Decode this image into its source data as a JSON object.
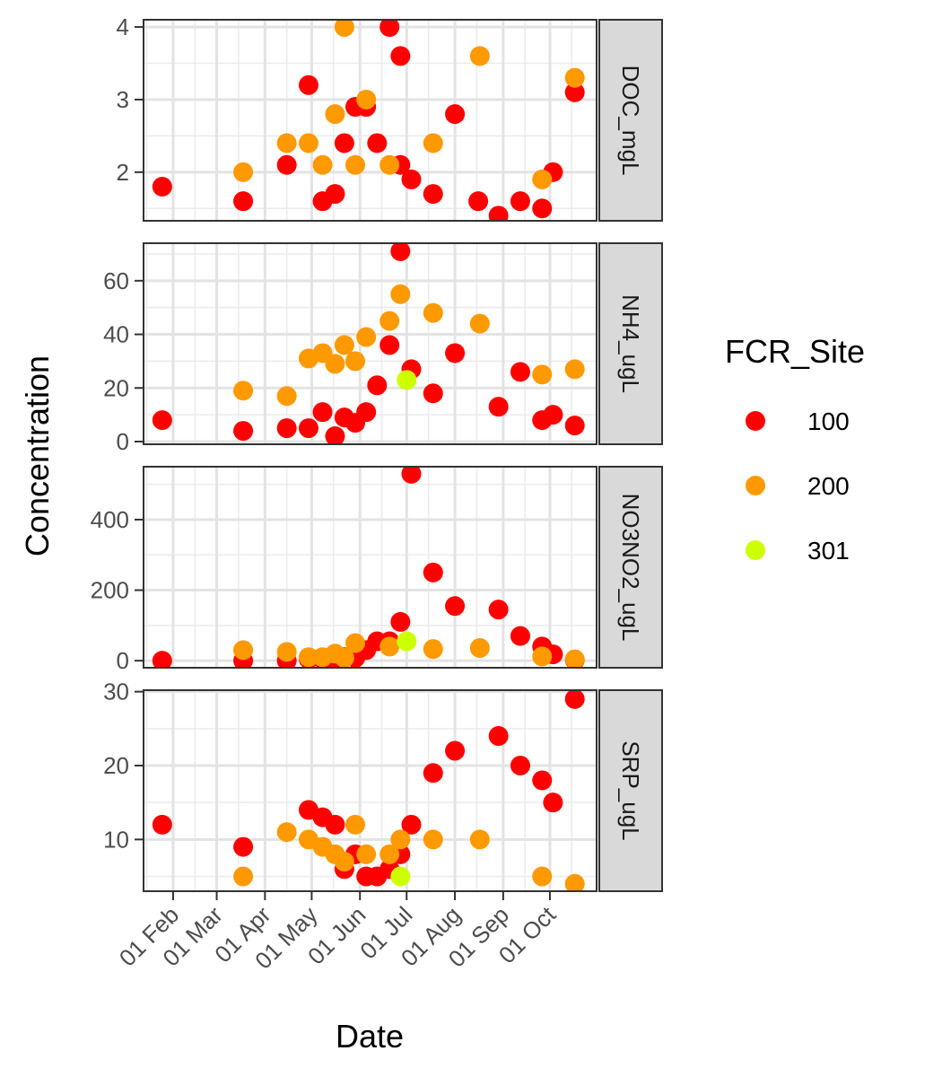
{
  "chart_data": {
    "type": "scatter",
    "xlabel": "Date",
    "ylabel": "Concentration",
    "x_ticks": [
      "01 Feb",
      "01 Mar",
      "01 Apr",
      "01 May",
      "01 Jun",
      "01 Jul",
      "01 Aug",
      "01 Sep",
      "01 Oct"
    ],
    "xlim": [
      "2019-01-13",
      "2019-10-31"
    ],
    "legend": {
      "title": "FCR_Site",
      "position": "right"
    },
    "sites": [
      {
        "name": "100",
        "color": "#ff0000"
      },
      {
        "name": "200",
        "color": "#ff9900"
      },
      {
        "name": "301",
        "color": "#ccff00"
      }
    ],
    "panels": [
      {
        "label": "DOC_mgL",
        "ylim": [
          1.33,
          4.1
        ],
        "y_ticks": [
          2,
          3,
          4
        ],
        "points": [
          {
            "x": "2019-01-25",
            "y": 1.8,
            "site": "100"
          },
          {
            "x": "2019-03-18",
            "y": 1.6,
            "site": "100"
          },
          {
            "x": "2019-04-15",
            "y": 2.1,
            "site": "100"
          },
          {
            "x": "2019-04-29",
            "y": 3.2,
            "site": "100"
          },
          {
            "x": "2019-05-08",
            "y": 1.6,
            "site": "100"
          },
          {
            "x": "2019-05-16",
            "y": 1.7,
            "site": "100"
          },
          {
            "x": "2019-05-22",
            "y": 2.4,
            "site": "100"
          },
          {
            "x": "2019-05-29",
            "y": 2.9,
            "site": "100"
          },
          {
            "x": "2019-06-05",
            "y": 2.9,
            "site": "100"
          },
          {
            "x": "2019-06-12",
            "y": 2.4,
            "site": "100"
          },
          {
            "x": "2019-06-20",
            "y": 4.0,
            "site": "100"
          },
          {
            "x": "2019-06-27",
            "y": 3.6,
            "site": "100"
          },
          {
            "x": "2019-06-27",
            "y": 2.1,
            "site": "100"
          },
          {
            "x": "2019-07-04",
            "y": 1.9,
            "site": "100"
          },
          {
            "x": "2019-07-18",
            "y": 1.7,
            "site": "100"
          },
          {
            "x": "2019-08-01",
            "y": 2.8,
            "site": "100"
          },
          {
            "x": "2019-08-16",
            "y": 1.6,
            "site": "100"
          },
          {
            "x": "2019-08-29",
            "y": 1.4,
            "site": "100"
          },
          {
            "x": "2019-09-12",
            "y": 1.6,
            "site": "100"
          },
          {
            "x": "2019-09-26",
            "y": 1.5,
            "site": "100"
          },
          {
            "x": "2019-10-03",
            "y": 2.0,
            "site": "100"
          },
          {
            "x": "2019-10-17",
            "y": 3.1,
            "site": "100"
          },
          {
            "x": "2019-03-18",
            "y": 2.0,
            "site": "200"
          },
          {
            "x": "2019-04-15",
            "y": 2.4,
            "site": "200"
          },
          {
            "x": "2019-04-29",
            "y": 2.4,
            "site": "200"
          },
          {
            "x": "2019-05-08",
            "y": 2.1,
            "site": "200"
          },
          {
            "x": "2019-05-16",
            "y": 2.8,
            "site": "200"
          },
          {
            "x": "2019-05-22",
            "y": 4.0,
            "site": "200"
          },
          {
            "x": "2019-05-29",
            "y": 2.1,
            "site": "200"
          },
          {
            "x": "2019-06-05",
            "y": 3.0,
            "site": "200"
          },
          {
            "x": "2019-06-20",
            "y": 2.1,
            "site": "200"
          },
          {
            "x": "2019-07-18",
            "y": 2.4,
            "site": "200"
          },
          {
            "x": "2019-08-17",
            "y": 3.6,
            "site": "200"
          },
          {
            "x": "2019-09-26",
            "y": 1.9,
            "site": "200"
          },
          {
            "x": "2019-10-17",
            "y": 3.3,
            "site": "200"
          }
        ]
      },
      {
        "label": "NH4_ugL",
        "ylim": [
          -1,
          74
        ],
        "y_ticks": [
          0,
          20,
          40,
          60
        ],
        "points": [
          {
            "x": "2019-01-25",
            "y": 8,
            "site": "100"
          },
          {
            "x": "2019-03-18",
            "y": 4,
            "site": "100"
          },
          {
            "x": "2019-04-15",
            "y": 5,
            "site": "100"
          },
          {
            "x": "2019-04-29",
            "y": 5,
            "site": "100"
          },
          {
            "x": "2019-05-08",
            "y": 11,
            "site": "100"
          },
          {
            "x": "2019-05-16",
            "y": 2,
            "site": "100"
          },
          {
            "x": "2019-05-22",
            "y": 9,
            "site": "100"
          },
          {
            "x": "2019-05-29",
            "y": 7,
            "site": "100"
          },
          {
            "x": "2019-06-05",
            "y": 11,
            "site": "100"
          },
          {
            "x": "2019-06-12",
            "y": 21,
            "site": "100"
          },
          {
            "x": "2019-06-20",
            "y": 36,
            "site": "100"
          },
          {
            "x": "2019-06-27",
            "y": 71,
            "site": "100"
          },
          {
            "x": "2019-07-04",
            "y": 27,
            "site": "100"
          },
          {
            "x": "2019-07-18",
            "y": 18,
            "site": "100"
          },
          {
            "x": "2019-08-01",
            "y": 33,
            "site": "100"
          },
          {
            "x": "2019-08-29",
            "y": 13,
            "site": "100"
          },
          {
            "x": "2019-09-12",
            "y": 26,
            "site": "100"
          },
          {
            "x": "2019-09-26",
            "y": 8,
            "site": "100"
          },
          {
            "x": "2019-10-03",
            "y": 10,
            "site": "100"
          },
          {
            "x": "2019-10-17",
            "y": 6,
            "site": "100"
          },
          {
            "x": "2019-03-18",
            "y": 19,
            "site": "200"
          },
          {
            "x": "2019-04-15",
            "y": 17,
            "site": "200"
          },
          {
            "x": "2019-04-29",
            "y": 31,
            "site": "200"
          },
          {
            "x": "2019-05-08",
            "y": 33,
            "site": "200"
          },
          {
            "x": "2019-05-16",
            "y": 29,
            "site": "200"
          },
          {
            "x": "2019-05-22",
            "y": 36,
            "site": "200"
          },
          {
            "x": "2019-05-29",
            "y": 30,
            "site": "200"
          },
          {
            "x": "2019-06-05",
            "y": 39,
            "site": "200"
          },
          {
            "x": "2019-06-20",
            "y": 45,
            "site": "200"
          },
          {
            "x": "2019-06-27",
            "y": 55,
            "site": "200"
          },
          {
            "x": "2019-07-18",
            "y": 48,
            "site": "200"
          },
          {
            "x": "2019-08-17",
            "y": 44,
            "site": "200"
          },
          {
            "x": "2019-09-26",
            "y": 25,
            "site": "200"
          },
          {
            "x": "2019-10-17",
            "y": 27,
            "site": "200"
          },
          {
            "x": "2019-07-01",
            "y": 23,
            "site": "301"
          }
        ]
      },
      {
        "label": "NO3NO2_ugL",
        "ylim": [
          -20,
          550
        ],
        "y_ticks": [
          0,
          200,
          400
        ],
        "points": [
          {
            "x": "2019-01-25",
            "y": 0,
            "site": "100"
          },
          {
            "x": "2019-03-18",
            "y": 0,
            "site": "100"
          },
          {
            "x": "2019-04-15",
            "y": 0,
            "site": "100"
          },
          {
            "x": "2019-04-29",
            "y": 5,
            "site": "100"
          },
          {
            "x": "2019-05-08",
            "y": 5,
            "site": "100"
          },
          {
            "x": "2019-05-16",
            "y": 3,
            "site": "100"
          },
          {
            "x": "2019-05-22",
            "y": 10,
            "site": "100"
          },
          {
            "x": "2019-05-29",
            "y": 8,
            "site": "100"
          },
          {
            "x": "2019-06-05",
            "y": 30,
            "site": "100"
          },
          {
            "x": "2019-06-12",
            "y": 55,
            "site": "100"
          },
          {
            "x": "2019-06-20",
            "y": 55,
            "site": "100"
          },
          {
            "x": "2019-06-27",
            "y": 110,
            "site": "100"
          },
          {
            "x": "2019-07-04",
            "y": 530,
            "site": "100"
          },
          {
            "x": "2019-07-18",
            "y": 250,
            "site": "100"
          },
          {
            "x": "2019-08-01",
            "y": 155,
            "site": "100"
          },
          {
            "x": "2019-08-29",
            "y": 145,
            "site": "100"
          },
          {
            "x": "2019-09-12",
            "y": 70,
            "site": "100"
          },
          {
            "x": "2019-09-26",
            "y": 40,
            "site": "100"
          },
          {
            "x": "2019-10-03",
            "y": 18,
            "site": "100"
          },
          {
            "x": "2019-10-17",
            "y": 2,
            "site": "100"
          },
          {
            "x": "2019-03-18",
            "y": 30,
            "site": "200"
          },
          {
            "x": "2019-04-15",
            "y": 25,
            "site": "200"
          },
          {
            "x": "2019-04-29",
            "y": 10,
            "site": "200"
          },
          {
            "x": "2019-05-08",
            "y": 10,
            "site": "200"
          },
          {
            "x": "2019-05-16",
            "y": 20,
            "site": "200"
          },
          {
            "x": "2019-05-22",
            "y": 8,
            "site": "200"
          },
          {
            "x": "2019-05-29",
            "y": 50,
            "site": "200"
          },
          {
            "x": "2019-06-20",
            "y": 40,
            "site": "200"
          },
          {
            "x": "2019-07-18",
            "y": 33,
            "site": "200"
          },
          {
            "x": "2019-08-17",
            "y": 36,
            "site": "200"
          },
          {
            "x": "2019-09-26",
            "y": 12,
            "site": "200"
          },
          {
            "x": "2019-10-17",
            "y": 4,
            "site": "200"
          },
          {
            "x": "2019-07-01",
            "y": 55,
            "site": "301"
          }
        ]
      },
      {
        "label": "SRP_ugL",
        "ylim": [
          3,
          30.2
        ],
        "y_ticks": [
          10,
          20,
          30
        ],
        "points": [
          {
            "x": "2019-01-25",
            "y": 12,
            "site": "100"
          },
          {
            "x": "2019-03-18",
            "y": 9,
            "site": "100"
          },
          {
            "x": "2019-04-29",
            "y": 14,
            "site": "100"
          },
          {
            "x": "2019-05-08",
            "y": 13,
            "site": "100"
          },
          {
            "x": "2019-05-16",
            "y": 12,
            "site": "100"
          },
          {
            "x": "2019-05-22",
            "y": 6,
            "site": "100"
          },
          {
            "x": "2019-05-29",
            "y": 8,
            "site": "100"
          },
          {
            "x": "2019-06-05",
            "y": 5,
            "site": "100"
          },
          {
            "x": "2019-06-12",
            "y": 5,
            "site": "100"
          },
          {
            "x": "2019-06-20",
            "y": 6,
            "site": "100"
          },
          {
            "x": "2019-06-27",
            "y": 8,
            "site": "100"
          },
          {
            "x": "2019-07-04",
            "y": 12,
            "site": "100"
          },
          {
            "x": "2019-07-18",
            "y": 19,
            "site": "100"
          },
          {
            "x": "2019-08-01",
            "y": 22,
            "site": "100"
          },
          {
            "x": "2019-08-29",
            "y": 24,
            "site": "100"
          },
          {
            "x": "2019-09-12",
            "y": 20,
            "site": "100"
          },
          {
            "x": "2019-09-26",
            "y": 18,
            "site": "100"
          },
          {
            "x": "2019-10-03",
            "y": 15,
            "site": "100"
          },
          {
            "x": "2019-10-17",
            "y": 29,
            "site": "100"
          },
          {
            "x": "2019-03-18",
            "y": 5,
            "site": "200"
          },
          {
            "x": "2019-04-15",
            "y": 11,
            "site": "200"
          },
          {
            "x": "2019-04-29",
            "y": 10,
            "site": "200"
          },
          {
            "x": "2019-05-08",
            "y": 9,
            "site": "200"
          },
          {
            "x": "2019-05-16",
            "y": 8,
            "site": "200"
          },
          {
            "x": "2019-05-22",
            "y": 7,
            "site": "200"
          },
          {
            "x": "2019-05-29",
            "y": 12,
            "site": "200"
          },
          {
            "x": "2019-06-05",
            "y": 8,
            "site": "200"
          },
          {
            "x": "2019-06-20",
            "y": 8,
            "site": "200"
          },
          {
            "x": "2019-06-27",
            "y": 10,
            "site": "200"
          },
          {
            "x": "2019-07-18",
            "y": 10,
            "site": "200"
          },
          {
            "x": "2019-08-17",
            "y": 10,
            "site": "200"
          },
          {
            "x": "2019-09-26",
            "y": 5,
            "site": "200"
          },
          {
            "x": "2019-10-17",
            "y": 4,
            "site": "200"
          },
          {
            "x": "2019-06-27",
            "y": 5,
            "site": "301"
          }
        ]
      }
    ]
  }
}
